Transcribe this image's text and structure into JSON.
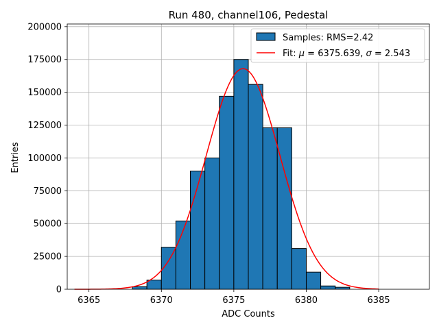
{
  "chart_data": {
    "type": "bar",
    "title": "Run 480, channel106, Pedestal",
    "xlabel": "ADC Counts",
    "ylabel": "Entries",
    "xlim": [
      6363.5,
      6388.5
    ],
    "ylim": [
      0,
      202000
    ],
    "xticks": [
      6365,
      6370,
      6375,
      6380,
      6385
    ],
    "yticks": [
      0,
      25000,
      50000,
      75000,
      100000,
      125000,
      150000,
      175000,
      200000
    ],
    "grid": true,
    "legend_position": "top-right",
    "colors": {
      "bars": "#1f77b4",
      "bar_edge": "#000000",
      "fit": "#ff0000"
    },
    "bin_width": 1,
    "bins": [
      {
        "x": 6368,
        "count": 2000
      },
      {
        "x": 6369,
        "count": 7000
      },
      {
        "x": 6370,
        "count": 32000
      },
      {
        "x": 6371,
        "count": 52000
      },
      {
        "x": 6372,
        "count": 90000
      },
      {
        "x": 6373,
        "count": 100000
      },
      {
        "x": 6374,
        "count": 147000
      },
      {
        "x": 6375,
        "count": 175000
      },
      {
        "x": 6376,
        "count": 156000
      },
      {
        "x": 6377,
        "count": 123000
      },
      {
        "x": 6378,
        "count": 123000
      },
      {
        "x": 6379,
        "count": 31000
      },
      {
        "x": 6380,
        "count": 13000
      },
      {
        "x": 6381,
        "count": 2500
      },
      {
        "x": 6382,
        "count": 1500
      }
    ],
    "fit": {
      "type": "gaussian",
      "mu": 6375.639,
      "sigma": 2.543,
      "amplitude": 168000,
      "x_range": [
        6364,
        6385
      ]
    },
    "legend": [
      {
        "kind": "patch",
        "label": "Samples: RMS=2.42"
      },
      {
        "kind": "line",
        "label_prefix": "Fit: ",
        "label_mu": "μ",
        "label_mid": " = 6375.639, ",
        "label_sigma": "σ",
        "label_tail": " = 2.543"
      }
    ]
  }
}
